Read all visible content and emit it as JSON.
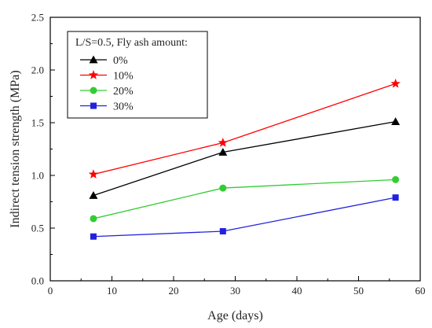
{
  "chart_data": {
    "type": "line",
    "xlabel": "Age (days)",
    "ylabel": "Indirect tension strength (MPa)",
    "xlim": [
      0,
      60
    ],
    "ylim": [
      0.0,
      2.5
    ],
    "xticks": [
      "0",
      "10",
      "20",
      "30",
      "40",
      "50",
      "60"
    ],
    "yticks": [
      "0.0",
      "0.5",
      "1.0",
      "1.5",
      "2.0",
      "2.5"
    ],
    "grid": false,
    "legend_position": "top-left",
    "legend_title": "L/S=0.5, Fly ash amount:",
    "x": [
      7,
      28,
      56
    ],
    "series": [
      {
        "name": "0%",
        "values": [
          0.81,
          1.22,
          1.51
        ],
        "color": "#000000",
        "marker": "triangle"
      },
      {
        "name": "10%",
        "values": [
          1.01,
          1.31,
          1.87
        ],
        "color": "#ff0000",
        "marker": "star"
      },
      {
        "name": "20%",
        "values": [
          0.59,
          0.88,
          0.96
        ],
        "color": "#33cc33",
        "marker": "circle"
      },
      {
        "name": "30%",
        "values": [
          0.42,
          0.47,
          0.79
        ],
        "color": "#2222dd",
        "marker": "square"
      }
    ]
  }
}
